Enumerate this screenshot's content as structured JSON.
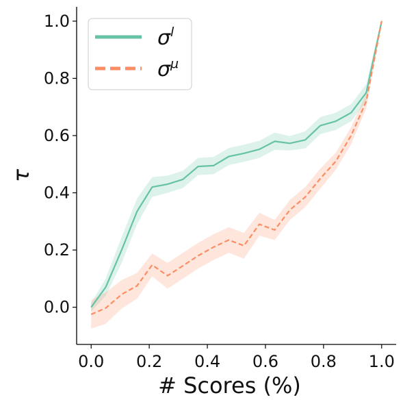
{
  "chart_data": {
    "type": "line",
    "title": "",
    "xlabel": "# Scores (%)",
    "ylabel": "τ",
    "xlim": [
      -0.05,
      1.05
    ],
    "ylim": [
      -0.13,
      1.05
    ],
    "xticks": [
      0.0,
      0.2,
      0.4,
      0.6,
      0.8,
      1.0
    ],
    "xtick_labels": [
      "0.0",
      "0.2",
      "0.4",
      "0.6",
      "0.8",
      "1.0"
    ],
    "yticks": [
      0.0,
      0.2,
      0.4,
      0.6,
      0.8,
      1.0
    ],
    "ytick_labels": [
      "0.0",
      "0.2",
      "0.4",
      "0.6",
      "0.8",
      "1.0"
    ],
    "grid": false,
    "legend_position": "top-left",
    "x": [
      0.0,
      0.05,
      0.105,
      0.158,
      0.21,
      0.263,
      0.316,
      0.368,
      0.421,
      0.474,
      0.526,
      0.579,
      0.632,
      0.684,
      0.737,
      0.789,
      0.842,
      0.895,
      0.947,
      1.0
    ],
    "series": [
      {
        "name": "σ",
        "name_sup": "l",
        "color": "#66c2a5",
        "style": "solid",
        "values": [
          0.0,
          0.07,
          0.2,
          0.335,
          0.42,
          0.43,
          0.447,
          0.492,
          0.495,
          0.527,
          0.538,
          0.552,
          0.58,
          0.573,
          0.585,
          0.635,
          0.65,
          0.68,
          0.75,
          1.0
        ],
        "band_halfwidth": [
          0.015,
          0.03,
          0.045,
          0.045,
          0.035,
          0.03,
          0.03,
          0.03,
          0.03,
          0.03,
          0.03,
          0.03,
          0.03,
          0.025,
          0.03,
          0.03,
          0.03,
          0.03,
          0.03,
          0.01
        ]
      },
      {
        "name": "σ",
        "name_sup": "μ",
        "color": "#fc8d62",
        "style": "dashed",
        "values": [
          -0.025,
          -0.003,
          0.045,
          0.075,
          0.148,
          0.11,
          0.145,
          0.18,
          0.21,
          0.235,
          0.215,
          0.29,
          0.27,
          0.34,
          0.385,
          0.45,
          0.51,
          0.6,
          0.72,
          1.0
        ],
        "band_halfwidth": [
          0.05,
          0.055,
          0.05,
          0.045,
          0.04,
          0.045,
          0.045,
          0.045,
          0.045,
          0.045,
          0.045,
          0.04,
          0.035,
          0.035,
          0.035,
          0.035,
          0.03,
          0.03,
          0.025,
          0.01
        ]
      }
    ]
  }
}
